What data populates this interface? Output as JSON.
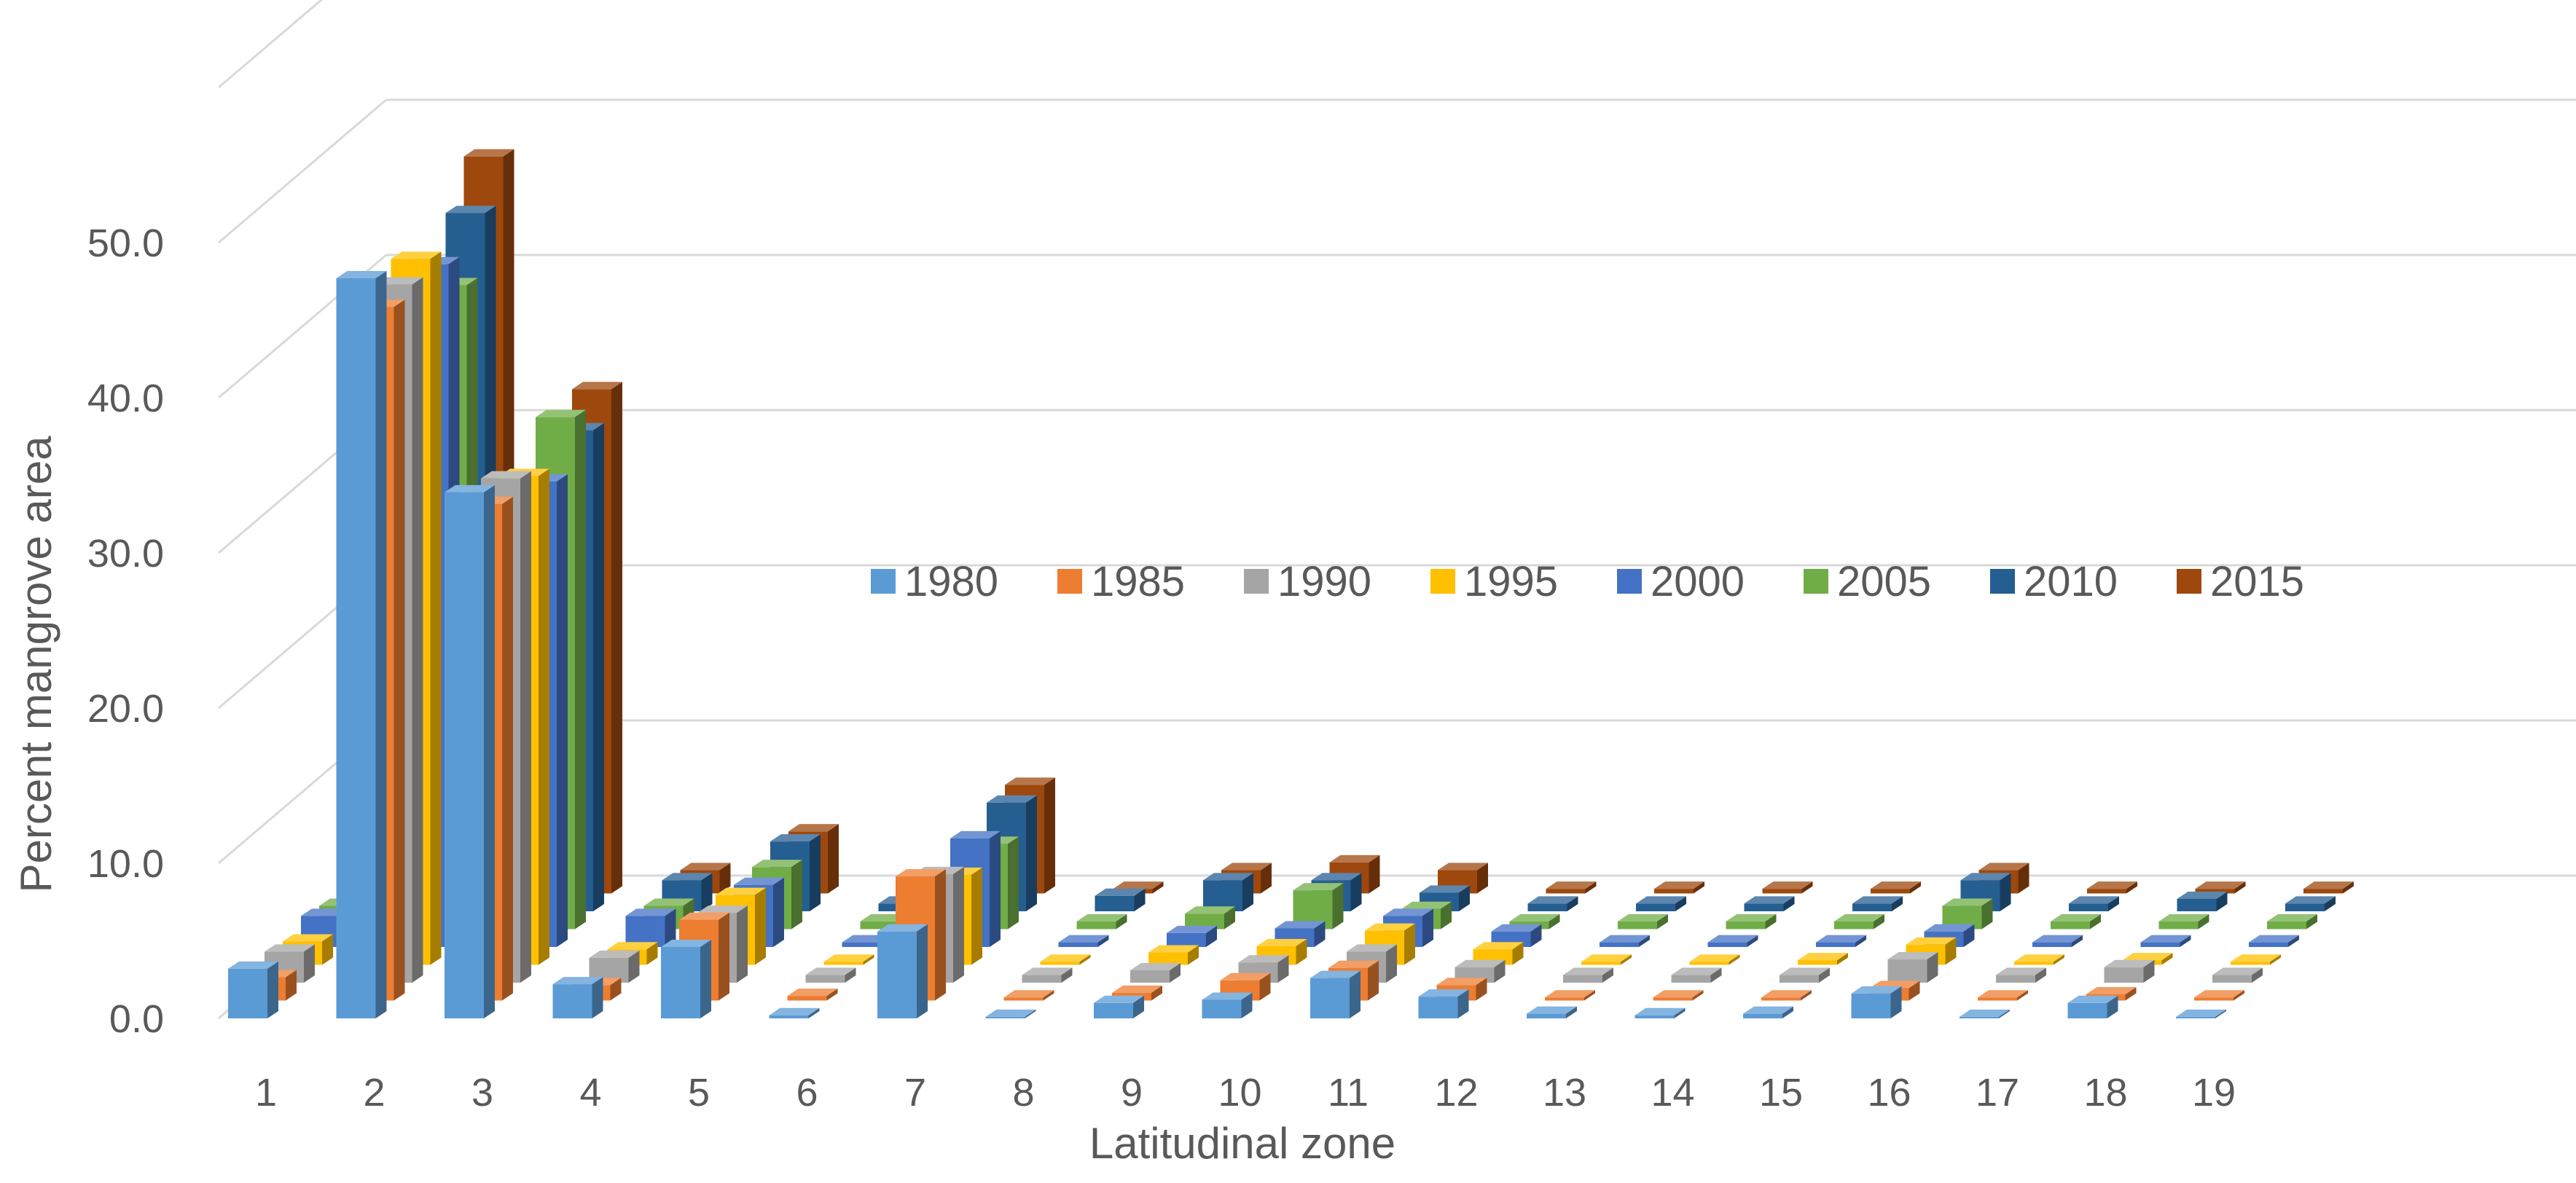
{
  "chart_data": {
    "type": "bar",
    "subtype": "3d-column",
    "title": "",
    "xlabel": "Latitudinal zone",
    "ylabel": "Percent mangrove area",
    "categories": [
      "1",
      "2",
      "3",
      "4",
      "5",
      "6",
      "7",
      "8",
      "9",
      "10",
      "11",
      "12",
      "13",
      "14",
      "15",
      "16",
      "17",
      "18",
      "19"
    ],
    "yticks": [
      "0.0",
      "10.0",
      "20.0",
      "30.0",
      "40.0",
      "50.0"
    ],
    "ylim": [
      0,
      60
    ],
    "grid": true,
    "legend_position": "center",
    "series": [
      {
        "name": "1980",
        "color": "#5b9bd5",
        "values": [
          3.2,
          47.7,
          33.9,
          2.2,
          4.6,
          0.2,
          5.6,
          0.1,
          1.0,
          1.2,
          2.6,
          1.4,
          0.3,
          0.2,
          0.3,
          1.6,
          0.1,
          1.0,
          0.1
        ]
      },
      {
        "name": "1985",
        "color": "#ed7d31",
        "values": [
          1.5,
          44.7,
          32.0,
          1.0,
          5.2,
          0.3,
          8.0,
          0.2,
          0.5,
          1.3,
          2.1,
          1.0,
          0.2,
          0.2,
          0.2,
          0.8,
          0.2,
          0.4,
          0.2
        ]
      },
      {
        "name": "1990",
        "color": "#a5a5a5",
        "values": [
          2.0,
          45.0,
          32.5,
          1.6,
          4.5,
          0.5,
          7.0,
          0.5,
          0.8,
          1.3,
          2.0,
          1.0,
          0.5,
          0.5,
          0.5,
          1.5,
          0.5,
          1.0,
          0.5
        ]
      },
      {
        "name": "1995",
        "color": "#ffc000",
        "values": [
          1.5,
          45.5,
          31.5,
          1.0,
          4.5,
          0.2,
          5.8,
          0.2,
          0.8,
          1.2,
          2.2,
          1.0,
          0.2,
          0.2,
          0.3,
          1.3,
          0.2,
          0.3,
          0.2
        ]
      },
      {
        "name": "2000",
        "color": "#4472c4",
        "values": [
          2.0,
          44.0,
          30.0,
          2.0,
          4.0,
          0.3,
          7.0,
          0.3,
          0.9,
          1.2,
          2.0,
          1.0,
          0.3,
          0.3,
          0.3,
          1.0,
          0.3,
          0.3,
          0.3
        ]
      },
      {
        "name": "2005",
        "color": "#70ad47",
        "values": [
          1.5,
          41.5,
          33.0,
          1.5,
          4.0,
          0.5,
          5.5,
          0.5,
          1.0,
          2.5,
          1.3,
          0.5,
          0.5,
          0.5,
          0.5,
          1.5,
          0.5,
          0.5,
          0.5
        ]
      },
      {
        "name": "2010",
        "color": "#255e91",
        "values": [
          2.0,
          45.0,
          31.0,
          2.0,
          4.5,
          0.5,
          7.0,
          1.0,
          2.0,
          2.0,
          1.2,
          0.5,
          0.5,
          0.5,
          0.5,
          2.0,
          0.5,
          0.8,
          0.5
        ]
      },
      {
        "name": "2015",
        "color": "#9e480e",
        "values": [
          1.5,
          47.5,
          32.5,
          1.5,
          4.0,
          0.3,
          7.0,
          0.3,
          1.5,
          2.0,
          1.5,
          0.3,
          0.3,
          0.3,
          0.3,
          1.5,
          0.3,
          0.3,
          0.3
        ]
      }
    ]
  }
}
